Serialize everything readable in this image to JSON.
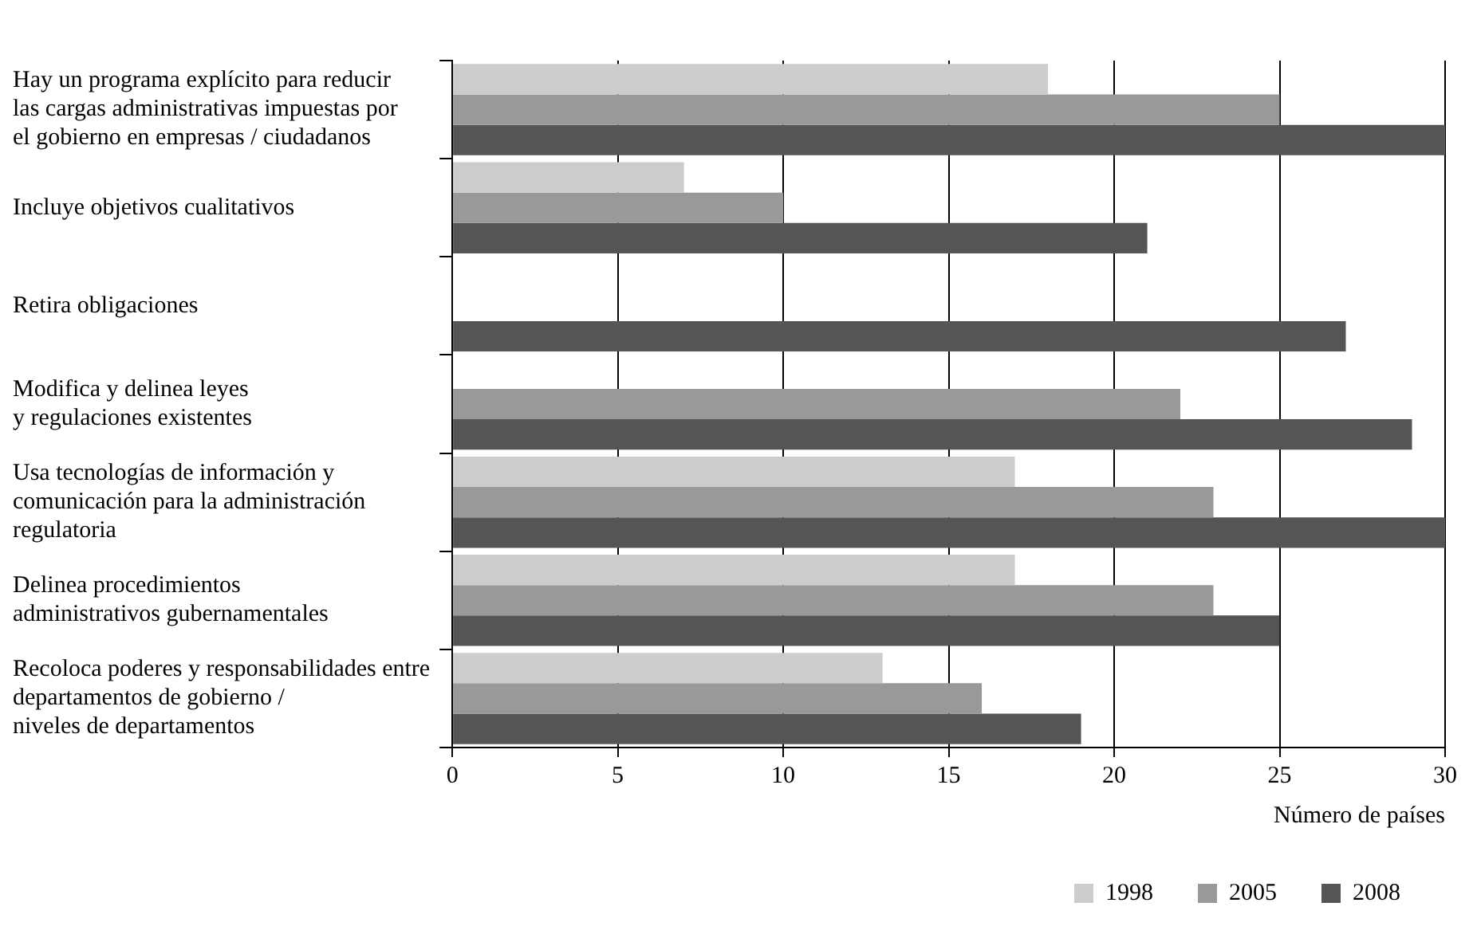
{
  "chart_data": {
    "type": "bar",
    "orientation": "horizontal",
    "xlabel": "Número de países",
    "categories": [
      "Hay un programa explícito para reducir\nlas cargas administrativas impuestas por\nel gobierno en empresas / ciudadanos",
      "Incluye objetivos cualitativos",
      "Retira obligaciones",
      "Modifica y delinea leyes\ny regulaciones existentes",
      "Usa tecnologías de información y\ncomunicación para la administración\nregulatoria",
      "Delinea procedimientos\nadministrativos gubernamentales",
      "Recoloca poderes y responsabilidades entre\ndepartamentos de gobierno /\nniveles de departamentos"
    ],
    "series": [
      {
        "name": "1998",
        "color": "#cccccc",
        "values": [
          18,
          7,
          null,
          null,
          17,
          17,
          13
        ]
      },
      {
        "name": "2005",
        "color": "#999999",
        "values": [
          25,
          10,
          null,
          22,
          23,
          23,
          16
        ]
      },
      {
        "name": "2008",
        "color": "#555555",
        "values": [
          30,
          21,
          27,
          29,
          30,
          25,
          19
        ]
      }
    ],
    "xlim": [
      0,
      30
    ],
    "xticks": [
      0,
      5,
      10,
      15,
      20,
      25,
      30
    ],
    "grid": "x",
    "legend": "bottom right"
  }
}
